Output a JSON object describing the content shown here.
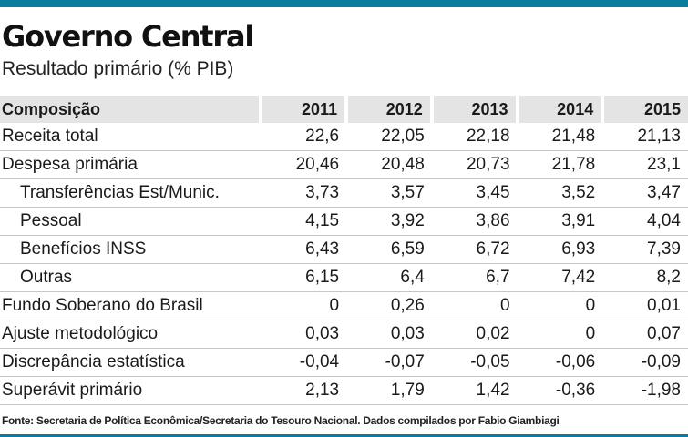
{
  "colors": {
    "accent": "#0a7d9c",
    "header_bg": "#e4e4e4"
  },
  "chart_data": {
    "type": "table",
    "title": "Governo Central",
    "subtitle": "Resultado primário (% PIB)",
    "header_label": "Composição",
    "columns": [
      "2011",
      "2012",
      "2013",
      "2014",
      "2015"
    ],
    "rows": [
      {
        "label": "Receita total",
        "indent": false,
        "values": [
          "22,6",
          "22,05",
          "22,18",
          "21,48",
          "21,13"
        ]
      },
      {
        "label": "Despesa primária",
        "indent": false,
        "values": [
          "20,46",
          "20,48",
          "20,73",
          "21,78",
          "23,1"
        ]
      },
      {
        "label": "Transferências Est/Munic.",
        "indent": true,
        "values": [
          "3,73",
          "3,57",
          "3,45",
          "3,52",
          "3,47"
        ]
      },
      {
        "label": "Pessoal",
        "indent": true,
        "values": [
          "4,15",
          "3,92",
          "3,86",
          "3,91",
          "4,04"
        ]
      },
      {
        "label": "Benefícios INSS",
        "indent": true,
        "values": [
          "6,43",
          "6,59",
          "6,72",
          "6,93",
          "7,39"
        ]
      },
      {
        "label": "Outras",
        "indent": true,
        "values": [
          "6,15",
          "6,4",
          "6,7",
          "7,42",
          "8,2"
        ]
      },
      {
        "label": "Fundo Soberano do Brasil",
        "indent": false,
        "values": [
          "0",
          "0,26",
          "0",
          "0",
          "0,01"
        ]
      },
      {
        "label": "Ajuste metodológico",
        "indent": false,
        "values": [
          "0,03",
          "0,03",
          "0,02",
          "0",
          "0,07"
        ]
      },
      {
        "label": "Discrepância estatística",
        "indent": false,
        "values": [
          "-0,04",
          "-0,07",
          "-0,05",
          "-0,06",
          "-0,09"
        ]
      },
      {
        "label": "Superávit primário",
        "indent": false,
        "values": [
          "2,13",
          "1,79",
          "1,42",
          "-0,36",
          "-1,98"
        ]
      }
    ],
    "source": "Fonte: Secretaria de Política Econômica/Secretaria do Tesouro Nacional. Dados compilados por Fabio Giambiagi"
  }
}
